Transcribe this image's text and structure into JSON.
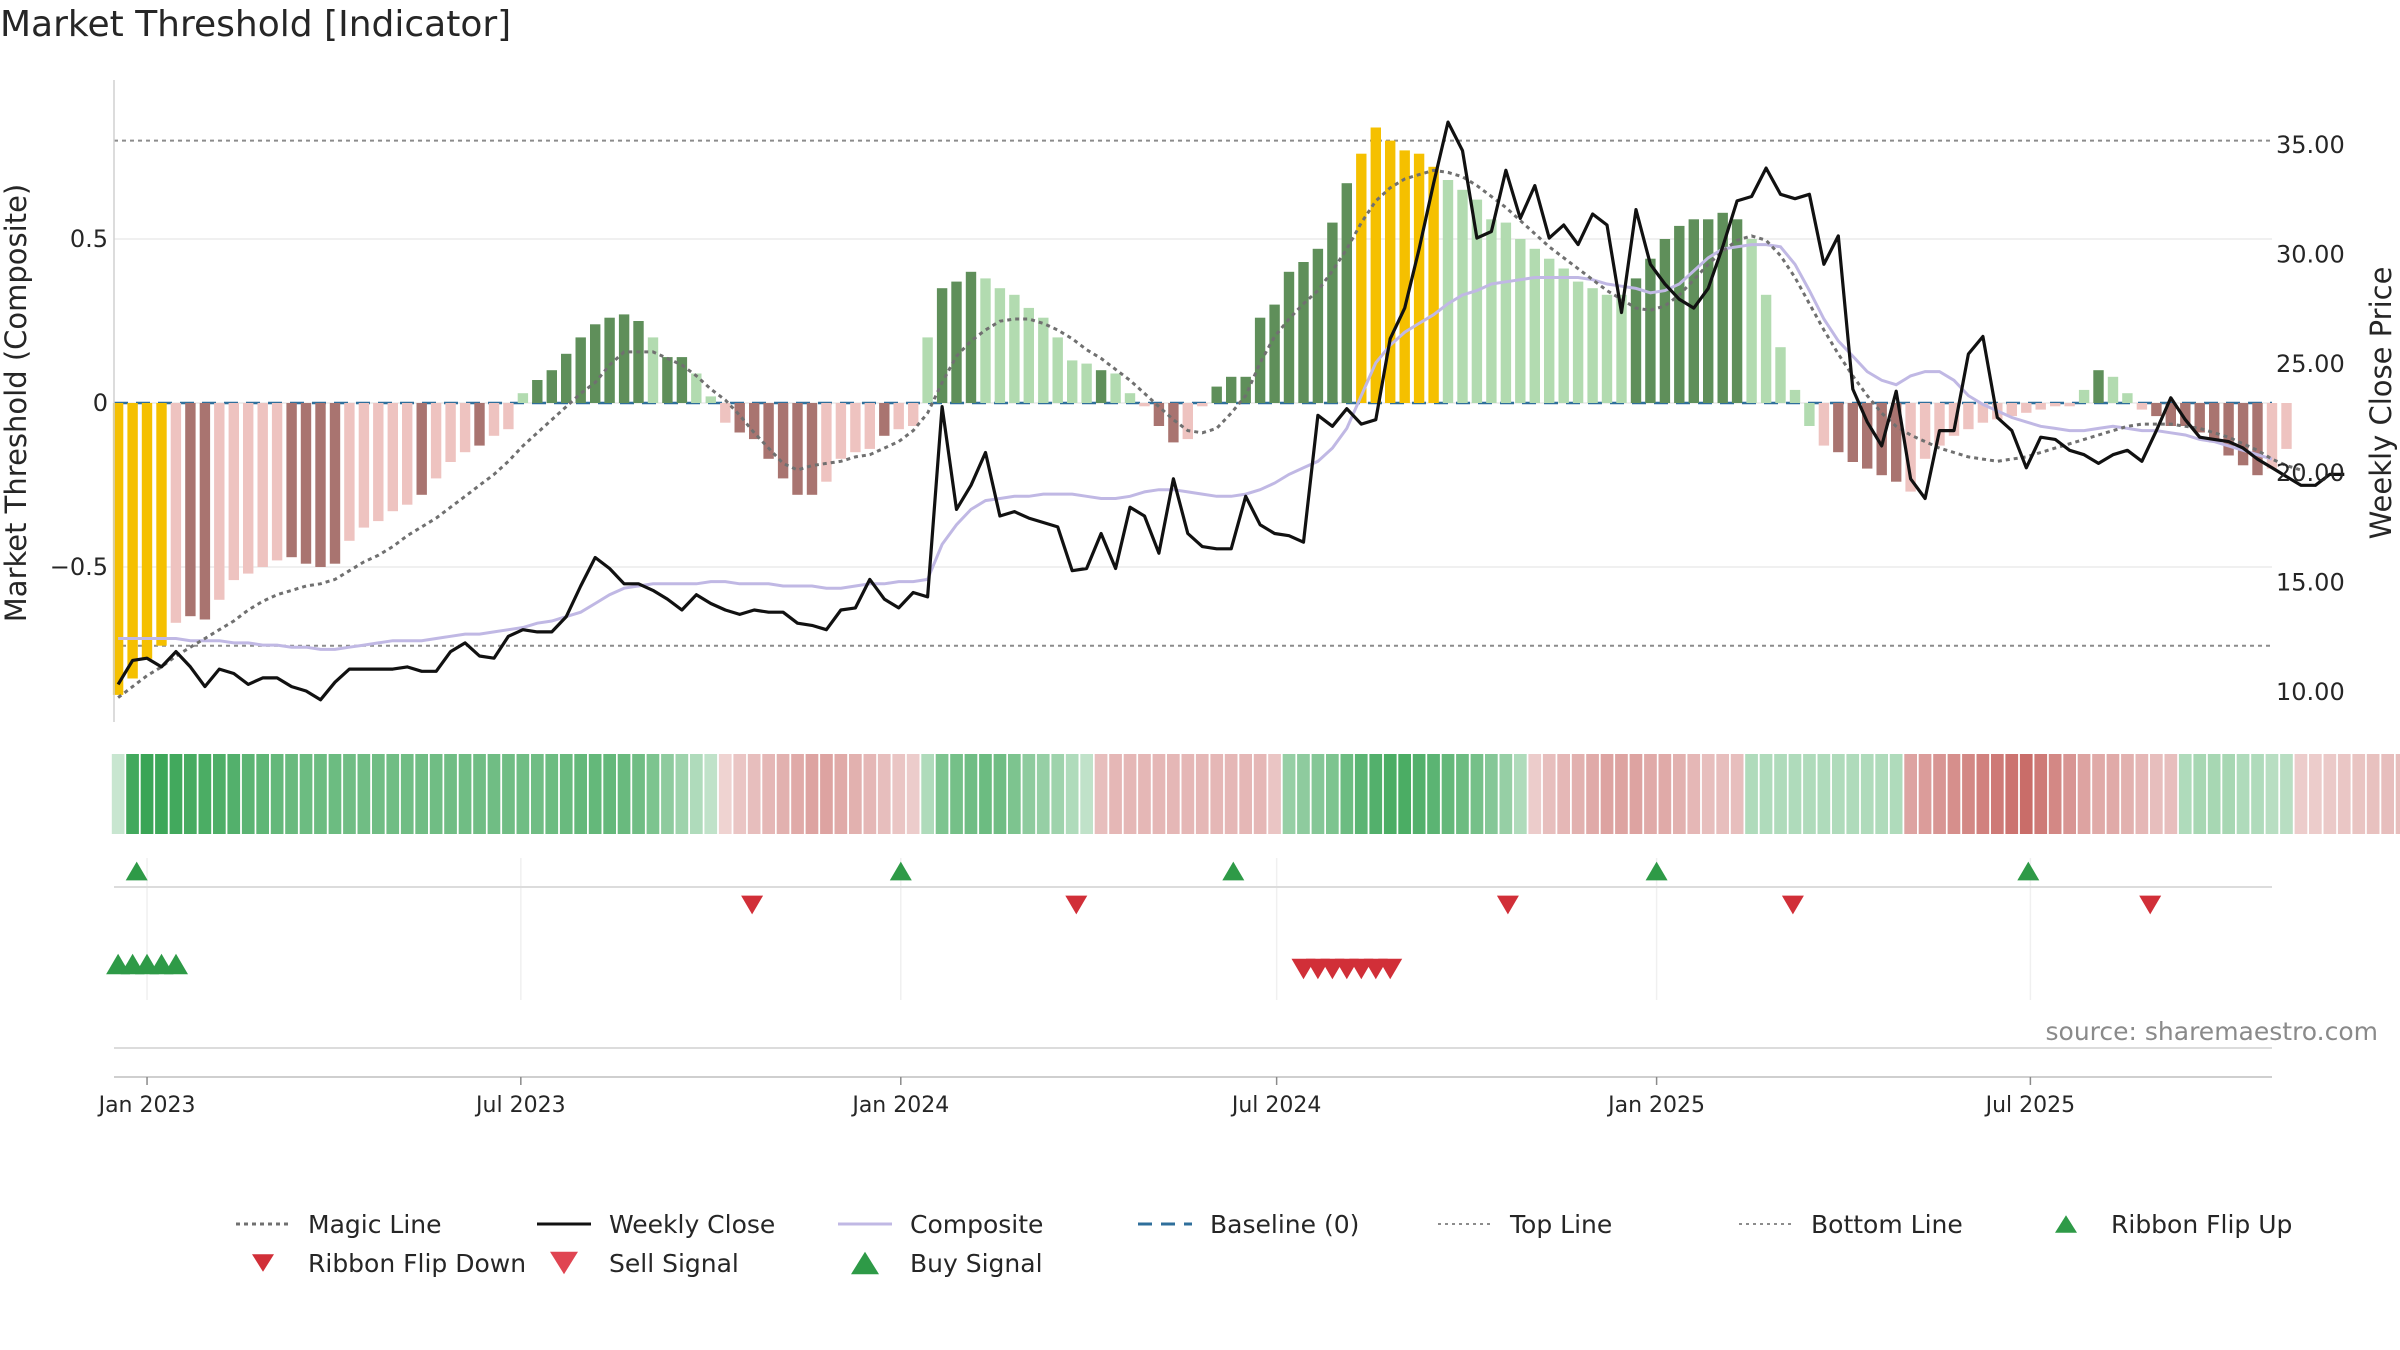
{
  "title": "Market Threshold [Indicator]",
  "source": "source: sharemaestro.com",
  "colors": {
    "magic": "#707070",
    "close": "#111111",
    "composite": "#c0b8e4",
    "baseline": "#2f6f9b",
    "refline": "#8c8c8c",
    "bar_yellow": "#f5c000",
    "bar_pos_dark": "#5f8f5a",
    "bar_pos_light": "#b2dbb0",
    "bar_neg_dark": "#a97470",
    "bar_neg_light": "#eec3c0",
    "ribbon_pos": "#3aa556",
    "ribbon_neg": "#c45f5b",
    "signal_up": "#2e9a47",
    "signal_down": "#d12f38"
  },
  "chart_data": {
    "type": "bar",
    "left_axis": {
      "label": "Market Threshold (Composite)",
      "ticks": [
        0.5,
        0,
        -0.5
      ],
      "tick_labels": [
        "0.5",
        "0",
        "−0.5"
      ],
      "ylim": [
        -0.9,
        0.9
      ]
    },
    "right_axis": {
      "label": "Weekly Close Price",
      "ticks": [
        35,
        30,
        25,
        20,
        15,
        10
      ],
      "tick_labels": [
        "35.00",
        "30.00",
        "25.00",
        "20.00",
        "15.00",
        "10.00"
      ],
      "ylim": [
        8.5,
        37
      ]
    },
    "x_ticks": [
      {
        "date": "2023-01-01",
        "label": "Jan 2023"
      },
      {
        "date": "2023-07-01",
        "label": "Jul 2023"
      },
      {
        "date": "2024-01-01",
        "label": "Jan 2024"
      },
      {
        "date": "2024-07-01",
        "label": "Jul 2024"
      },
      {
        "date": "2025-01-01",
        "label": "Jan 2025"
      },
      {
        "date": "2025-07-01",
        "label": "Jul 2025"
      }
    ],
    "x_range": [
      "2022-12-16",
      "2025-10-26"
    ],
    "start_date": "2022-12-18",
    "week_step_days": 7,
    "top_line": 0.8,
    "bottom_line": -0.74,
    "baseline": 0,
    "composite_bars": [
      -0.89,
      -0.84,
      -0.78,
      -0.74,
      -0.67,
      -0.65,
      -0.66,
      -0.6,
      -0.54,
      -0.52,
      -0.5,
      -0.48,
      -0.47,
      -0.49,
      -0.5,
      -0.49,
      -0.42,
      -0.38,
      -0.36,
      -0.33,
      -0.31,
      -0.28,
      -0.23,
      -0.18,
      -0.15,
      -0.13,
      -0.1,
      -0.08,
      0.03,
      0.07,
      0.1,
      0.15,
      0.2,
      0.24,
      0.26,
      0.27,
      0.25,
      0.2,
      0.14,
      0.14,
      0.09,
      0.02,
      -0.06,
      -0.09,
      -0.11,
      -0.17,
      -0.23,
      -0.28,
      -0.28,
      -0.24,
      -0.17,
      -0.15,
      -0.14,
      -0.1,
      -0.08,
      -0.07,
      0.2,
      0.35,
      0.37,
      0.4,
      0.38,
      0.35,
      0.33,
      0.29,
      0.26,
      0.2,
      0.13,
      0.12,
      0.1,
      0.09,
      0.03,
      -0.01,
      -0.07,
      -0.12,
      -0.11,
      -0.01,
      0.05,
      0.08,
      0.08,
      0.26,
      0.3,
      0.4,
      0.43,
      0.47,
      0.55,
      0.67,
      0.76,
      0.84,
      0.8,
      0.77,
      0.76,
      0.72,
      0.68,
      0.65,
      0.62,
      0.56,
      0.55,
      0.5,
      0.47,
      0.44,
      0.41,
      0.37,
      0.35,
      0.33,
      0.33,
      0.38,
      0.44,
      0.5,
      0.54,
      0.56,
      0.56,
      0.58,
      0.56,
      0.5,
      0.33,
      0.17,
      0.04,
      -0.07,
      -0.13,
      -0.15,
      -0.18,
      -0.2,
      -0.22,
      -0.24,
      -0.27,
      -0.17,
      -0.13,
      -0.1,
      -0.08,
      -0.06,
      -0.05,
      -0.04,
      -0.03,
      -0.02,
      -0.01,
      -0.01,
      0.04,
      0.1,
      0.08,
      0.03,
      -0.02,
      -0.04,
      -0.07,
      -0.07,
      -0.09,
      -0.12,
      -0.16,
      -0.19,
      -0.22,
      -0.2,
      -0.14
    ],
    "bar_colors": [
      "y",
      "y",
      "y",
      "y",
      "n",
      "nd",
      "nd",
      "n",
      "n",
      "n",
      "n",
      "n",
      "nd",
      "nd",
      "nd",
      "nd",
      "n",
      "n",
      "n",
      "n",
      "n",
      "nd",
      "n",
      "n",
      "n",
      "nd",
      "n",
      "n",
      "p",
      "pd",
      "pd",
      "pd",
      "pd",
      "pd",
      "pd",
      "pd",
      "pd",
      "p",
      "pd",
      "pd",
      "p",
      "p",
      "n",
      "nd",
      "nd",
      "nd",
      "nd",
      "nd",
      "nd",
      "n",
      "n",
      "n",
      "n",
      "nd",
      "n",
      "n",
      "p",
      "pd",
      "pd",
      "pd",
      "p",
      "p",
      "p",
      "p",
      "p",
      "p",
      "p",
      "p",
      "pd",
      "p",
      "p",
      "n",
      "nd",
      "nd",
      "n",
      "n",
      "pd",
      "pd",
      "pd",
      "pd",
      "pd",
      "pd",
      "pd",
      "pd",
      "pd",
      "pd",
      "y",
      "y",
      "y",
      "y",
      "y",
      "y",
      "p",
      "p",
      "p",
      "p",
      "p",
      "p",
      "p",
      "p",
      "p",
      "p",
      "p",
      "p",
      "p",
      "pd",
      "pd",
      "pd",
      "pd",
      "pd",
      "pd",
      "pd",
      "pd",
      "p",
      "p",
      "p",
      "p",
      "p",
      "n",
      "nd",
      "nd",
      "nd",
      "nd",
      "nd",
      "n",
      "n",
      "n",
      "n",
      "n",
      "n",
      "n",
      "n",
      "n",
      "n",
      "n",
      "n",
      "p",
      "pd",
      "p",
      "p",
      "n",
      "nd",
      "nd",
      "nd",
      "nd",
      "nd",
      "nd",
      "nd",
      "nd",
      "n",
      "n"
    ],
    "ribbon": [
      0.15,
      0.95,
      1,
      0.98,
      0.95,
      0.92,
      0.9,
      0.88,
      0.85,
      0.8,
      0.78,
      0.75,
      0.72,
      0.7,
      0.7,
      0.7,
      0.68,
      0.68,
      0.68,
      0.68,
      0.68,
      0.68,
      0.68,
      0.68,
      0.68,
      0.68,
      0.68,
      0.68,
      0.68,
      0.68,
      0.7,
      0.72,
      0.75,
      0.75,
      0.75,
      0.72,
      0.68,
      0.6,
      0.5,
      0.4,
      0.3,
      0.2,
      -0.15,
      -0.25,
      -0.3,
      -0.35,
      -0.4,
      -0.45,
      -0.5,
      -0.5,
      -0.45,
      -0.4,
      -0.35,
      -0.3,
      -0.25,
      -0.2,
      0.3,
      0.6,
      0.65,
      0.68,
      0.7,
      0.68,
      0.6,
      0.5,
      0.45,
      0.4,
      0.3,
      0.2,
      -0.3,
      -0.35,
      -0.35,
      -0.35,
      -0.35,
      -0.35,
      -0.35,
      -0.35,
      -0.35,
      -0.35,
      -0.35,
      -0.35,
      -0.25,
      0.45,
      0.5,
      0.55,
      0.6,
      0.7,
      0.8,
      0.85,
      0.9,
      0.9,
      0.85,
      0.8,
      0.75,
      0.7,
      0.65,
      0.55,
      0.45,
      0.3,
      -0.2,
      -0.3,
      -0.35,
      -0.4,
      -0.45,
      -0.5,
      -0.5,
      -0.5,
      -0.45,
      -0.45,
      -0.4,
      -0.35,
      -0.3,
      -0.3,
      -0.3,
      0.3,
      0.3,
      0.3,
      0.3,
      0.3,
      0.3,
      0.3,
      0.3,
      0.3,
      0.3,
      0.3,
      -0.5,
      -0.55,
      -0.6,
      -0.65,
      -0.7,
      -0.75,
      -0.8,
      -0.85,
      -0.9,
      -0.8,
      -0.7,
      -0.6,
      -0.5,
      -0.45,
      -0.45,
      -0.4,
      -0.35,
      -0.3,
      -0.3,
      0.3,
      0.35,
      0.35,
      0.35,
      0.3,
      0.3,
      0.25,
      0.25,
      -0.2,
      -0.2,
      -0.22,
      -0.24,
      -0.26,
      -0.28,
      -0.3,
      -0.3
    ],
    "weekly_close": [
      10.3,
      11.4,
      11.5,
      11.1,
      11.8,
      11.1,
      10.2,
      11,
      10.8,
      10.3,
      10.6,
      10.6,
      10.2,
      10,
      9.6,
      10.4,
      11,
      11,
      11,
      11,
      11.1,
      10.9,
      10.9,
      11.8,
      12.2,
      11.6,
      11.5,
      12.5,
      12.8,
      12.7,
      12.7,
      13.4,
      14.8,
      16.1,
      15.6,
      14.9,
      14.9,
      14.6,
      14.2,
      13.7,
      14.4,
      14,
      13.7,
      13.5,
      13.7,
      13.6,
      13.6,
      13.1,
      13,
      12.8,
      13.7,
      13.8,
      15.1,
      14.2,
      13.8,
      14.5,
      14.3,
      23,
      18.3,
      19.4,
      20.9,
      18,
      18.2,
      17.9,
      17.7,
      17.5,
      15.5,
      15.6,
      17.2,
      15.6,
      18.4,
      18,
      16.3,
      19.7,
      17.2,
      16.6,
      16.5,
      16.5,
      18.9,
      17.6,
      17.2,
      17.1,
      16.8,
      22.6,
      22.1,
      22.9,
      22.2,
      22.4,
      26.1,
      27.5,
      30.2,
      33.2,
      36,
      34.7,
      30.7,
      31,
      33.8,
      31.6,
      33.1,
      30.7,
      31.3,
      30.4,
      31.8,
      31.3,
      27.3,
      32,
      29.5,
      28.6,
      27.9,
      27.5,
      28.4,
      30.3,
      32.4,
      32.6,
      33.9,
      32.7,
      32.5,
      32.7,
      29.5,
      30.8,
      23.8,
      22.3,
      21.2,
      23.7,
      19.7,
      18.8,
      21.9,
      21.9,
      25.4,
      26.2,
      22.5,
      21.9,
      20.2,
      21.6,
      21.5,
      21,
      20.8,
      20.4,
      20.8,
      21,
      20.5,
      21.9,
      23.4,
      22.4,
      21.6,
      21.5,
      21.4,
      21.1,
      20.6,
      20.2,
      19.8,
      19.4,
      19.4,
      19.9,
      19.9
    ],
    "composite_line": [
      12.4,
      12.4,
      12.4,
      12.4,
      12.4,
      12.3,
      12.3,
      12.3,
      12.2,
      12.2,
      12.1,
      12.1,
      12.0,
      12.0,
      11.9,
      11.9,
      12.0,
      12.1,
      12.2,
      12.3,
      12.3,
      12.3,
      12.4,
      12.5,
      12.6,
      12.6,
      12.7,
      12.8,
      12.9,
      13.1,
      13.2,
      13.4,
      13.6,
      14,
      14.4,
      14.7,
      14.8,
      14.9,
      14.9,
      14.9,
      14.9,
      15,
      15,
      14.9,
      14.9,
      14.9,
      14.8,
      14.8,
      14.8,
      14.7,
      14.7,
      14.8,
      14.9,
      14.9,
      15,
      15,
      15.1,
      16.7,
      17.6,
      18.3,
      18.7,
      18.8,
      18.9,
      18.9,
      19,
      19,
      19,
      18.9,
      18.8,
      18.8,
      18.9,
      19.1,
      19.2,
      19.2,
      19.1,
      19,
      18.9,
      18.9,
      19,
      19.2,
      19.5,
      19.9,
      20.2,
      20.5,
      21.1,
      22,
      23.5,
      25,
      25.8,
      26.4,
      26.8,
      27.2,
      27.7,
      28.1,
      28.3,
      28.6,
      28.7,
      28.8,
      28.9,
      28.9,
      28.9,
      28.9,
      28.8,
      28.6,
      28.5,
      28.4,
      28.2,
      28.3,
      28.6,
      29.2,
      29.8,
      30.2,
      30.3,
      30.4,
      30.4,
      30.3,
      29.5,
      28.3,
      27,
      26,
      25.3,
      24.6,
      24.2,
      24,
      24.4,
      24.6,
      24.6,
      24.2,
      23.5,
      23.1,
      22.8,
      22.5,
      22.3,
      22.1,
      22,
      21.9,
      21.9,
      22,
      22.1,
      22,
      21.9,
      21.9,
      21.8,
      21.7,
      21.5,
      21.4,
      21.2,
      21,
      20.8,
      20.6
    ],
    "magic_line": [
      9.7,
      10.2,
      10.7,
      11.1,
      11.6,
      12,
      12.4,
      12.8,
      13.2,
      13.7,
      14.1,
      14.4,
      14.6,
      14.8,
      14.9,
      15.1,
      15.5,
      15.9,
      16.2,
      16.6,
      17.1,
      17.5,
      17.9,
      18.4,
      18.9,
      19.4,
      19.9,
      20.5,
      21.2,
      21.8,
      22.4,
      23,
      23.6,
      24.1,
      24.9,
      25.5,
      25.5,
      25.5,
      25.2,
      24.9,
      24.4,
      23.8,
      23.3,
      22.6,
      21.8,
      21.1,
      20.4,
      20.1,
      20.3,
      20.4,
      20.5,
      20.7,
      20.8,
      21.1,
      21.4,
      21.9,
      22.7,
      24.1,
      25.3,
      26,
      26.5,
      26.9,
      27,
      27,
      26.8,
      26.5,
      26.1,
      25.6,
      25.2,
      24.7,
      24.2,
      23.6,
      23,
      22.4,
      21.9,
      21.8,
      22,
      22.7,
      23.5,
      25,
      26.2,
      27,
      27.7,
      28.3,
      29.2,
      30.2,
      31.4,
      32.4,
      33,
      33.4,
      33.6,
      33.8,
      33.7,
      33.5,
      33.1,
      32.6,
      32.1,
      31.5,
      30.9,
      30.3,
      29.8,
      29.3,
      28.8,
      28.3,
      27.9,
      27.5,
      27.4,
      27.6,
      28.1,
      28.8,
      29.5,
      30.1,
      30.6,
      30.8,
      30.6,
      29.9,
      28.9,
      27.7,
      26.5,
      25.4,
      24.4,
      23.5,
      22.7,
      22.1,
      21.7,
      21.4,
      21.1,
      20.9,
      20.7,
      20.6,
      20.5,
      20.6,
      20.7,
      20.9,
      21.1,
      21.3,
      21.5,
      21.7,
      21.9,
      22.1,
      22.2,
      22.2,
      22.2,
      22.1,
      22,
      21.8,
      21.6,
      21.3,
      21,
      20.6,
      20.3,
      20.1
    ],
    "ribbon_flip_up_dates": [
      "2022-12-27",
      "2024-01-01",
      "2024-06-10",
      "2025-01-01",
      "2025-06-30"
    ],
    "ribbon_flip_down_dates": [
      "2023-10-21",
      "2024-03-26",
      "2024-10-21",
      "2025-03-08",
      "2025-08-28"
    ],
    "buy_signal_dates": [
      "2022-12-18",
      "2022-12-25",
      "2023-01-01",
      "2023-01-08",
      "2023-01-15"
    ],
    "sell_signal_dates": [
      "2024-07-14",
      "2024-07-21",
      "2024-07-28",
      "2024-08-04",
      "2024-08-11",
      "2024-08-18",
      "2024-08-25"
    ]
  },
  "legend": [
    {
      "label": "Magic Line",
      "kind": "line-dotted",
      "color": "#707070"
    },
    {
      "label": "Weekly Close",
      "kind": "line-solid",
      "color": "#111111"
    },
    {
      "label": "Composite",
      "kind": "line-solid",
      "color": "#c0b8e4"
    },
    {
      "label": "Baseline (0)",
      "kind": "line-dashed",
      "color": "#2f6f9b"
    },
    {
      "label": "Top Line",
      "kind": "line-dotted-light",
      "color": "#8c8c8c"
    },
    {
      "label": "Bottom Line",
      "kind": "line-dotted-light",
      "color": "#8c8c8c"
    },
    {
      "label": "Ribbon Flip Up",
      "kind": "tri-up-small",
      "color": "#2e9a47"
    },
    {
      "label": "Ribbon Flip Down",
      "kind": "tri-down-small",
      "color": "#d12f38"
    },
    {
      "label": "Sell Signal",
      "kind": "tri-down",
      "color": "#e04552"
    },
    {
      "label": "Buy Signal",
      "kind": "tri-up",
      "color": "#2e9a47"
    }
  ]
}
